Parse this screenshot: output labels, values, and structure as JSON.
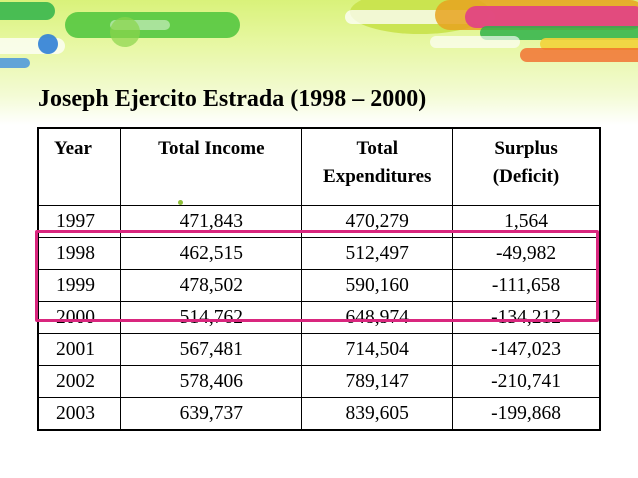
{
  "slide": {
    "title": "Joseph Ejercito Estrada (1998 – 2000)",
    "highlight_color": "#d9267e",
    "highlighted_years": [
      "1998",
      "1999",
      "2000"
    ]
  },
  "table": {
    "headers": {
      "year": "Year",
      "income": "Total Income",
      "expenditures_line1": "Total",
      "expenditures_line2": "Expenditures",
      "surplus_line1": "Surplus",
      "surplus_line2": "(Deficit)"
    },
    "rows": [
      {
        "year": "1997",
        "income": "471,843",
        "expenditures": "470,279",
        "surplus": "1,564"
      },
      {
        "year": "1998",
        "income": "462,515",
        "expenditures": "512,497",
        "surplus": "-49,982"
      },
      {
        "year": "1999",
        "income": "478,502",
        "expenditures": "590,160",
        "surplus": "-111,658"
      },
      {
        "year": "2000",
        "income": "514,762",
        "expenditures": "648,974",
        "surplus": "-134,212"
      },
      {
        "year": "2001",
        "income": "567,481",
        "expenditures": "714,504",
        "surplus": "-147,023"
      },
      {
        "year": "2002",
        "income": "578,406",
        "expenditures": "789,147",
        "surplus": "-210,741"
      },
      {
        "year": "2003",
        "income": "639,737",
        "expenditures": "839,605",
        "surplus": "-199,868"
      }
    ]
  }
}
